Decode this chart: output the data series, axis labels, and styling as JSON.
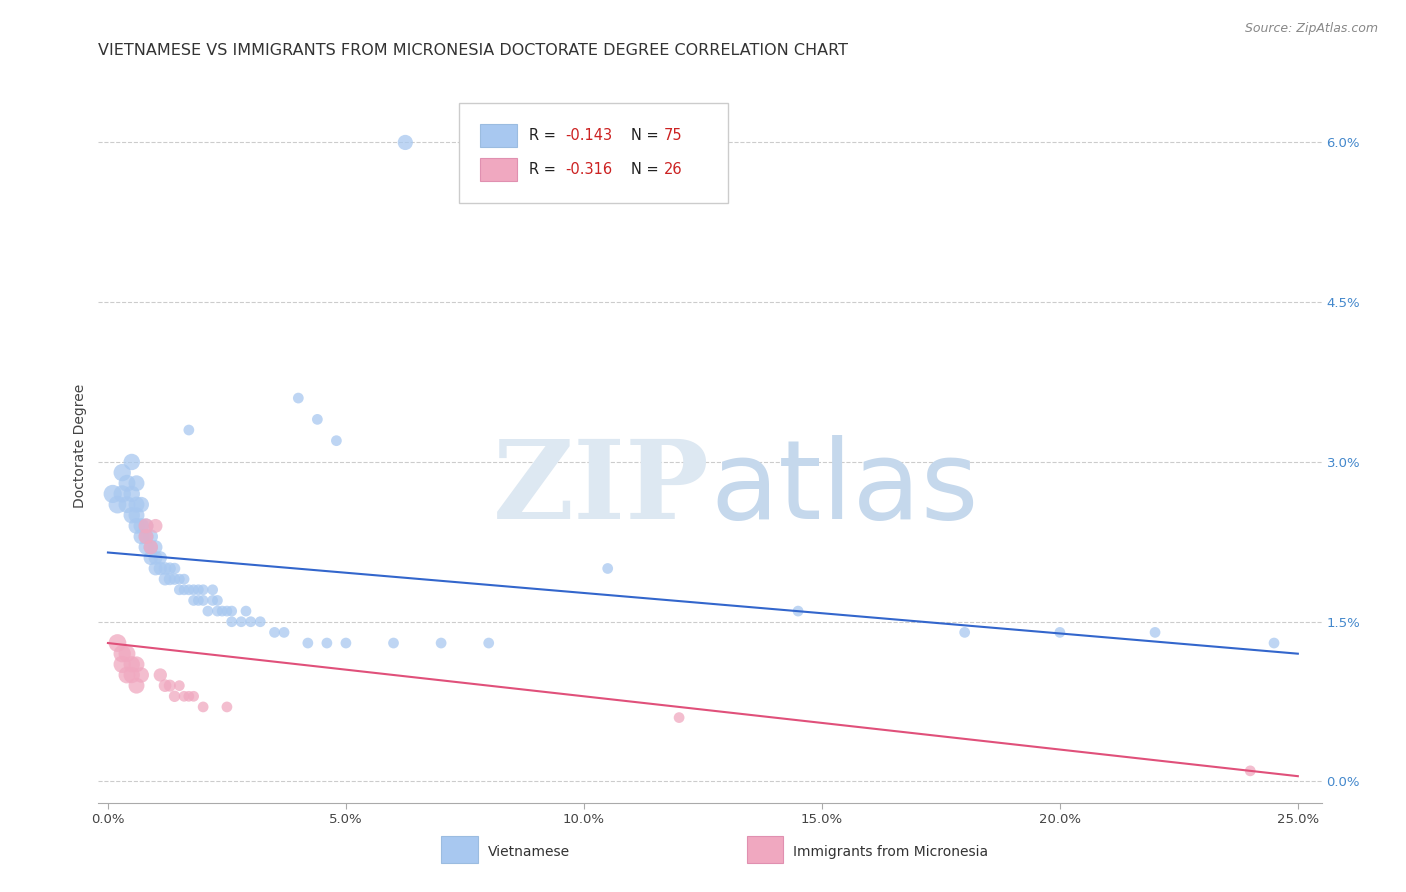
{
  "title": "VIETNAMESE VS IMMIGRANTS FROM MICRONESIA DOCTORATE DEGREE CORRELATION CHART",
  "source": "Source: ZipAtlas.com",
  "ylabel": "Doctorate Degree",
  "xlim": [
    -0.002,
    0.255
  ],
  "ylim": [
    -0.002,
    0.065
  ],
  "xticks": [
    0.0,
    0.05,
    0.1,
    0.15,
    0.2,
    0.25
  ],
  "xtick_labels": [
    "0.0%",
    "5.0%",
    "10.0%",
    "15.0%",
    "20.0%",
    "25.0%"
  ],
  "yticks_right": [
    0.0,
    0.015,
    0.03,
    0.045,
    0.06
  ],
  "ytick_right_labels": [
    "0.0%",
    "1.5%",
    "3.0%",
    "4.5%",
    "6.0%"
  ],
  "blue_color": "#a8c8f0",
  "pink_color": "#f0a8c0",
  "line_blue": "#3366cc",
  "line_pink": "#e0507a",
  "blue_scatter": [
    [
      0.001,
      0.027
    ],
    [
      0.002,
      0.026
    ],
    [
      0.003,
      0.029
    ],
    [
      0.003,
      0.027
    ],
    [
      0.004,
      0.028
    ],
    [
      0.004,
      0.026
    ],
    [
      0.005,
      0.025
    ],
    [
      0.005,
      0.027
    ],
    [
      0.005,
      0.03
    ],
    [
      0.006,
      0.024
    ],
    [
      0.006,
      0.025
    ],
    [
      0.006,
      0.026
    ],
    [
      0.006,
      0.028
    ],
    [
      0.007,
      0.023
    ],
    [
      0.007,
      0.024
    ],
    [
      0.007,
      0.026
    ],
    [
      0.008,
      0.022
    ],
    [
      0.008,
      0.023
    ],
    [
      0.008,
      0.024
    ],
    [
      0.009,
      0.021
    ],
    [
      0.009,
      0.022
    ],
    [
      0.009,
      0.023
    ],
    [
      0.01,
      0.02
    ],
    [
      0.01,
      0.021
    ],
    [
      0.01,
      0.022
    ],
    [
      0.011,
      0.02
    ],
    [
      0.011,
      0.021
    ],
    [
      0.012,
      0.019
    ],
    [
      0.012,
      0.02
    ],
    [
      0.013,
      0.019
    ],
    [
      0.013,
      0.02
    ],
    [
      0.014,
      0.019
    ],
    [
      0.014,
      0.02
    ],
    [
      0.015,
      0.018
    ],
    [
      0.015,
      0.019
    ],
    [
      0.016,
      0.018
    ],
    [
      0.016,
      0.019
    ],
    [
      0.017,
      0.033
    ],
    [
      0.017,
      0.018
    ],
    [
      0.018,
      0.017
    ],
    [
      0.018,
      0.018
    ],
    [
      0.019,
      0.017
    ],
    [
      0.019,
      0.018
    ],
    [
      0.02,
      0.017
    ],
    [
      0.02,
      0.018
    ],
    [
      0.021,
      0.016
    ],
    [
      0.022,
      0.017
    ],
    [
      0.022,
      0.018
    ],
    [
      0.023,
      0.016
    ],
    [
      0.023,
      0.017
    ],
    [
      0.024,
      0.016
    ],
    [
      0.025,
      0.016
    ],
    [
      0.026,
      0.015
    ],
    [
      0.026,
      0.016
    ],
    [
      0.028,
      0.015
    ],
    [
      0.029,
      0.016
    ],
    [
      0.03,
      0.015
    ],
    [
      0.032,
      0.015
    ],
    [
      0.035,
      0.014
    ],
    [
      0.037,
      0.014
    ],
    [
      0.04,
      0.036
    ],
    [
      0.042,
      0.013
    ],
    [
      0.044,
      0.034
    ],
    [
      0.046,
      0.013
    ],
    [
      0.048,
      0.032
    ],
    [
      0.05,
      0.013
    ],
    [
      0.06,
      0.013
    ],
    [
      0.07,
      0.013
    ],
    [
      0.08,
      0.013
    ],
    [
      0.105,
      0.02
    ],
    [
      0.145,
      0.016
    ],
    [
      0.18,
      0.014
    ],
    [
      0.2,
      0.014
    ],
    [
      0.22,
      0.014
    ],
    [
      0.245,
      0.013
    ]
  ],
  "pink_scatter": [
    [
      0.002,
      0.013
    ],
    [
      0.003,
      0.011
    ],
    [
      0.003,
      0.012
    ],
    [
      0.004,
      0.012
    ],
    [
      0.004,
      0.01
    ],
    [
      0.005,
      0.011
    ],
    [
      0.005,
      0.01
    ],
    [
      0.006,
      0.011
    ],
    [
      0.006,
      0.009
    ],
    [
      0.007,
      0.01
    ],
    [
      0.008,
      0.024
    ],
    [
      0.008,
      0.023
    ],
    [
      0.009,
      0.022
    ],
    [
      0.01,
      0.024
    ],
    [
      0.011,
      0.01
    ],
    [
      0.012,
      0.009
    ],
    [
      0.013,
      0.009
    ],
    [
      0.014,
      0.008
    ],
    [
      0.015,
      0.009
    ],
    [
      0.016,
      0.008
    ],
    [
      0.017,
      0.008
    ],
    [
      0.018,
      0.008
    ],
    [
      0.02,
      0.007
    ],
    [
      0.025,
      0.007
    ],
    [
      0.12,
      0.006
    ],
    [
      0.24,
      0.001
    ]
  ],
  "blue_line": {
    "x0": 0.0,
    "y0": 0.0215,
    "x1": 0.25,
    "y1": 0.012
  },
  "pink_line": {
    "x0": 0.0,
    "y0": 0.013,
    "x1": 0.25,
    "y1": 0.0005
  },
  "title_fontsize": 11.5,
  "axis_fontsize": 10,
  "tick_fontsize": 9.5,
  "background_color": "#ffffff",
  "grid_color": "#cccccc"
}
